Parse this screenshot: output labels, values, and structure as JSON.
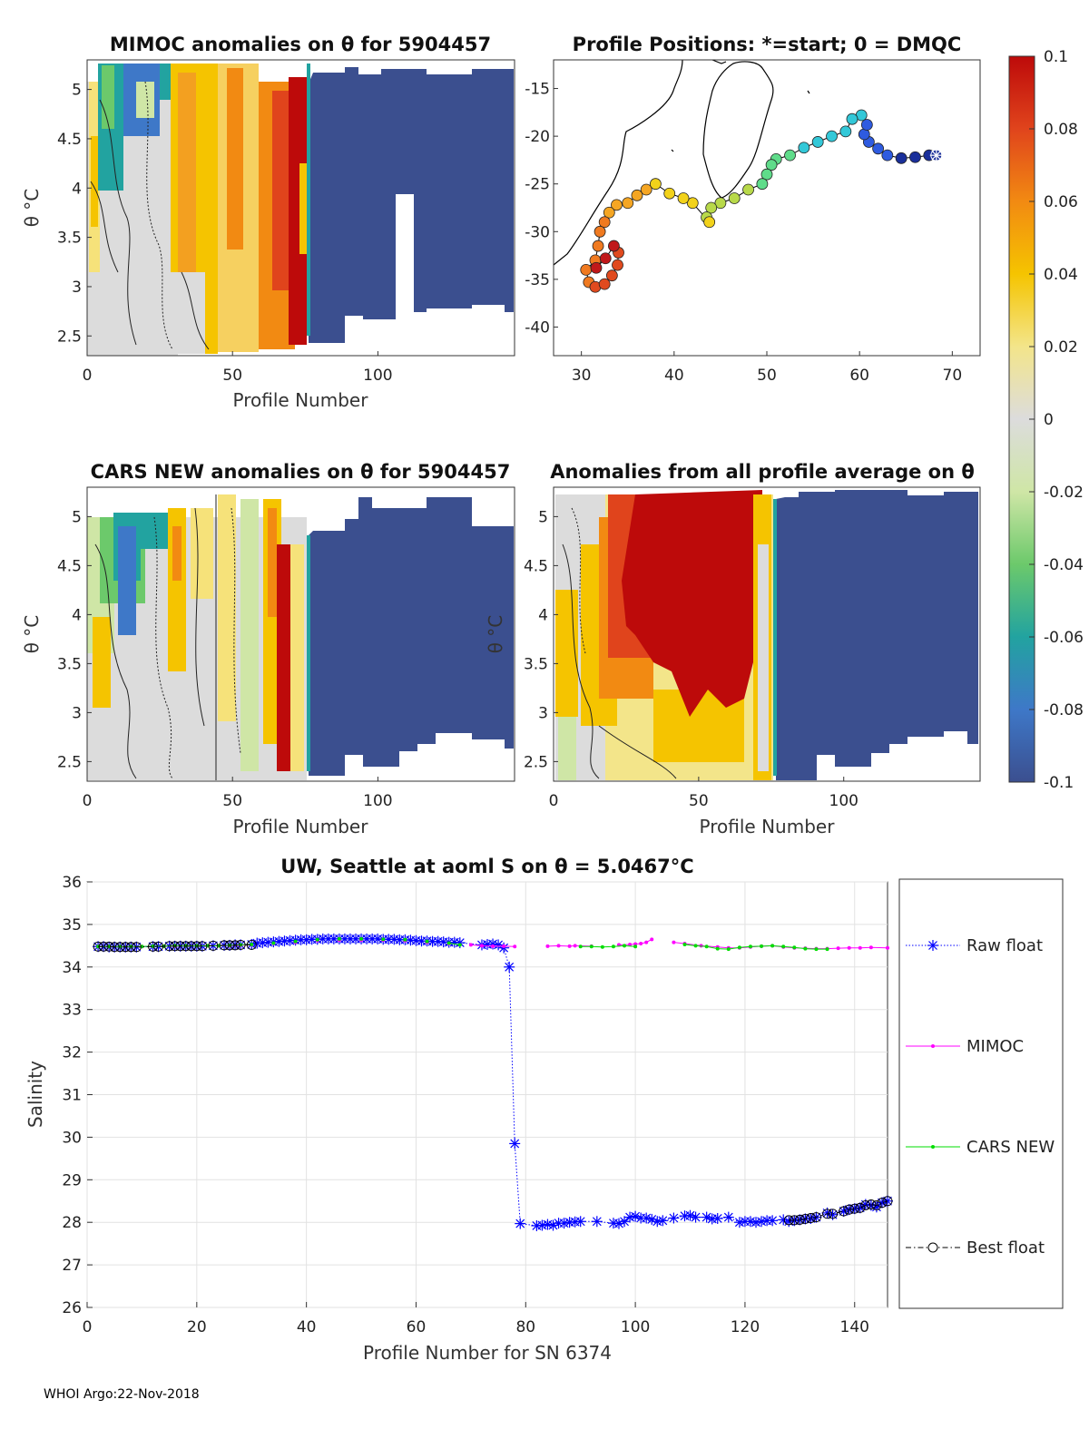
{
  "footer": "WHOI Argo:22-Nov-2018",
  "panels": {
    "mimoc": {
      "title": "MIMOC anomalies on θ  for 5904457",
      "xlabel": "Profile Number",
      "ylabel": "θ °C",
      "xticks": [
        0,
        50,
        100
      ],
      "yticks": [
        2.5,
        3,
        3.5,
        4,
        4.5,
        5
      ],
      "xlim": [
        0,
        147
      ],
      "ylim": [
        2.3,
        5.3
      ]
    },
    "map": {
      "title": "Profile Positions: *=start; 0 = DMQC",
      "xticks": [
        30,
        40,
        50,
        60,
        70
      ],
      "yticks": [
        -15,
        -20,
        -25,
        -30,
        -35,
        -40
      ],
      "xlim": [
        27,
        73
      ],
      "ylim": [
        -43,
        -12
      ]
    },
    "cars": {
      "title": "CARS NEW anomalies on θ for 5904457",
      "xlabel": "Profile Number",
      "ylabel": "θ °C",
      "xticks": [
        0,
        50,
        100
      ],
      "yticks": [
        2.5,
        3,
        3.5,
        4,
        4.5,
        5
      ],
      "xlim": [
        0,
        147
      ],
      "ylim": [
        2.3,
        5.3
      ]
    },
    "avg": {
      "title": "Anomalies from all profile average on θ",
      "xlabel": "Profile Number",
      "ylabel": "θ °C",
      "xticks": [
        0,
        50,
        100
      ],
      "yticks": [
        2.5,
        3,
        3.5,
        4,
        4.5,
        5
      ],
      "xlim": [
        0,
        147
      ],
      "ylim": [
        2.3,
        5.3
      ]
    }
  },
  "colorbar": {
    "ticks": [
      "0.1",
      "0.08",
      "0.06",
      "0.04",
      "0.02",
      "0",
      "-0.02",
      "-0.04",
      "-0.06",
      "-0.08",
      "-0.1"
    ]
  },
  "chart_data": {
    "type": "line",
    "title": "UW, Seattle at aoml S on θ = 5.0467°C",
    "xlabel": "Profile Number for SN 6374",
    "ylabel": "Salinity",
    "xlim": [
      0,
      146
    ],
    "ylim": [
      26,
      36
    ],
    "xticks": [
      0,
      20,
      40,
      60,
      80,
      100,
      120,
      140
    ],
    "yticks": [
      26,
      27,
      28,
      29,
      30,
      31,
      32,
      33,
      34,
      35,
      36
    ],
    "grid": true,
    "legend": [
      "Raw float",
      "MIMOC",
      "CARS NEW",
      "Best float"
    ],
    "series": [
      {
        "name": "Raw float",
        "color": "#0000ff",
        "points": [
          [
            2,
            34.48
          ],
          [
            3,
            34.48
          ],
          [
            4,
            34.47
          ],
          [
            5,
            34.47
          ],
          [
            6,
            34.47
          ],
          [
            7,
            34.47
          ],
          [
            8,
            34.47
          ],
          [
            9,
            34.47
          ],
          [
            12,
            34.48
          ],
          [
            13,
            34.48
          ],
          [
            15,
            34.49
          ],
          [
            16,
            34.49
          ],
          [
            17,
            34.49
          ],
          [
            18,
            34.49
          ],
          [
            19,
            34.49
          ],
          [
            20,
            34.49
          ],
          [
            21,
            34.49
          ],
          [
            23,
            34.5
          ],
          [
            25,
            34.51
          ],
          [
            26,
            34.51
          ],
          [
            27,
            34.52
          ],
          [
            28,
            34.52
          ],
          [
            30,
            34.53
          ],
          [
            31,
            34.56
          ],
          [
            32,
            34.57
          ],
          [
            33,
            34.58
          ],
          [
            34,
            34.59
          ],
          [
            35,
            34.6
          ],
          [
            36,
            34.61
          ],
          [
            37,
            34.62
          ],
          [
            38,
            34.63
          ],
          [
            39,
            34.64
          ],
          [
            40,
            34.64
          ],
          [
            41,
            34.65
          ],
          [
            42,
            34.65
          ],
          [
            43,
            34.66
          ],
          [
            44,
            34.66
          ],
          [
            45,
            34.66
          ],
          [
            46,
            34.66
          ],
          [
            47,
            34.66
          ],
          [
            48,
            34.66
          ],
          [
            49,
            34.66
          ],
          [
            50,
            34.66
          ],
          [
            51,
            34.66
          ],
          [
            52,
            34.66
          ],
          [
            53,
            34.66
          ],
          [
            54,
            34.65
          ],
          [
            55,
            34.65
          ],
          [
            56,
            34.65
          ],
          [
            57,
            34.64
          ],
          [
            58,
            34.64
          ],
          [
            59,
            34.63
          ],
          [
            60,
            34.62
          ],
          [
            61,
            34.61
          ],
          [
            62,
            34.61
          ],
          [
            63,
            34.6
          ],
          [
            64,
            34.6
          ],
          [
            65,
            34.59
          ],
          [
            66,
            34.58
          ],
          [
            67,
            34.58
          ],
          [
            68,
            34.57
          ],
          [
            72,
            34.52
          ],
          [
            73,
            34.53
          ],
          [
            74,
            34.54
          ],
          [
            75,
            34.52
          ],
          [
            76,
            34.45
          ],
          [
            77,
            34.0
          ],
          [
            78,
            29.85
          ],
          [
            79,
            27.97
          ],
          [
            82,
            27.92
          ],
          [
            83,
            27.93
          ],
          [
            84,
            27.95
          ],
          [
            85,
            27.93
          ],
          [
            86,
            27.98
          ],
          [
            87,
            27.98
          ],
          [
            88,
            28.0
          ],
          [
            89,
            28.01
          ],
          [
            90,
            28.02
          ],
          [
            93,
            28.02
          ],
          [
            96,
            27.98
          ],
          [
            97,
            27.97
          ],
          [
            98,
            28.02
          ],
          [
            99,
            28.12
          ],
          [
            100,
            28.14
          ],
          [
            101,
            28.1
          ],
          [
            102,
            28.1
          ],
          [
            103,
            28.07
          ],
          [
            104,
            28.02
          ],
          [
            105,
            28.04
          ],
          [
            107,
            28.1
          ],
          [
            109,
            28.15
          ],
          [
            110,
            28.16
          ],
          [
            111,
            28.12
          ],
          [
            113,
            28.12
          ],
          [
            114,
            28.08
          ],
          [
            115,
            28.09
          ],
          [
            117,
            28.12
          ],
          [
            119,
            28.0
          ],
          [
            120,
            28.02
          ],
          [
            121,
            28.02
          ],
          [
            122,
            28.0
          ],
          [
            123,
            28.02
          ],
          [
            124,
            28.04
          ],
          [
            125,
            28.04
          ],
          [
            127,
            28.06
          ],
          [
            128,
            28.02
          ],
          [
            129,
            28.04
          ],
          [
            130,
            28.06
          ],
          [
            131,
            28.08
          ],
          [
            132,
            28.09
          ],
          [
            133,
            28.12
          ],
          [
            135,
            28.22
          ],
          [
            136,
            28.18
          ],
          [
            138,
            28.26
          ],
          [
            139,
            28.3
          ],
          [
            140,
            28.32
          ],
          [
            141,
            28.34
          ],
          [
            142,
            28.42
          ],
          [
            143,
            28.4
          ],
          [
            144,
            28.36
          ],
          [
            145,
            28.46
          ],
          [
            146,
            28.5
          ]
        ]
      },
      {
        "name": "MIMOC",
        "color": "#ff00ff",
        "points": [
          [
            2,
            34.48
          ],
          [
            4,
            34.48
          ],
          [
            6,
            34.48
          ],
          [
            8,
            34.48
          ],
          [
            10,
            34.48
          ],
          [
            12,
            34.49
          ],
          [
            14,
            34.49
          ],
          [
            16,
            34.49
          ],
          [
            18,
            34.5
          ],
          [
            20,
            34.5
          ],
          [
            22,
            34.5
          ],
          [
            24,
            34.5
          ],
          [
            26,
            34.5
          ],
          [
            28,
            34.51
          ],
          [
            30,
            34.52
          ],
          [
            34,
            34.55
          ],
          [
            38,
            34.58
          ],
          [
            42,
            34.62
          ],
          [
            46,
            34.63
          ],
          [
            50,
            34.63
          ],
          [
            54,
            34.63
          ],
          [
            58,
            34.62
          ],
          [
            62,
            34.58
          ],
          [
            66,
            34.55
          ],
          [
            70,
            34.52
          ],
          [
            72,
            34.5
          ],
          [
            74,
            34.49
          ],
          [
            76,
            34.49
          ],
          [
            78,
            34.48
          ],
          [
            84,
            34.49
          ],
          [
            86,
            34.5
          ],
          [
            88,
            34.49
          ],
          [
            89,
            34.5
          ],
          [
            92,
            34.49
          ],
          [
            97,
            34.52
          ],
          [
            99,
            34.53
          ],
          [
            100,
            34.54
          ],
          [
            101,
            34.55
          ],
          [
            102,
            34.58
          ],
          [
            103,
            34.65
          ],
          [
            107,
            34.58
          ],
          [
            109,
            34.55
          ],
          [
            112,
            34.5
          ],
          [
            115,
            34.47
          ],
          [
            117,
            34.45
          ],
          [
            119,
            34.45
          ],
          [
            121,
            34.47
          ],
          [
            123,
            34.49
          ],
          [
            125,
            34.5
          ],
          [
            127,
            34.47
          ],
          [
            129,
            34.45
          ],
          [
            131,
            34.44
          ],
          [
            133,
            34.43
          ],
          [
            135,
            34.43
          ],
          [
            137,
            34.44
          ],
          [
            139,
            34.45
          ],
          [
            141,
            34.45
          ],
          [
            143,
            34.46
          ],
          [
            146,
            34.45
          ]
        ]
      },
      {
        "name": "CARS NEW",
        "color": "#00dd00",
        "points": [
          [
            2,
            34.48
          ],
          [
            4,
            34.48
          ],
          [
            6,
            34.48
          ],
          [
            8,
            34.48
          ],
          [
            10,
            34.48
          ],
          [
            12,
            34.49
          ],
          [
            14,
            34.49
          ],
          [
            16,
            34.5
          ],
          [
            18,
            34.5
          ],
          [
            20,
            34.5
          ],
          [
            22,
            34.5
          ],
          [
            24,
            34.5
          ],
          [
            26,
            34.51
          ],
          [
            28,
            34.52
          ],
          [
            30,
            34.53
          ],
          [
            34,
            34.56
          ],
          [
            38,
            34.6
          ],
          [
            42,
            34.64
          ],
          [
            46,
            34.66
          ],
          [
            50,
            34.66
          ],
          [
            54,
            34.65
          ],
          [
            58,
            34.64
          ],
          [
            62,
            34.6
          ],
          [
            66,
            34.56
          ],
          [
            68,
            34.52
          ],
          [
            90,
            34.48
          ],
          [
            92,
            34.48
          ],
          [
            94,
            34.47
          ],
          [
            96,
            34.48
          ],
          [
            98,
            34.5
          ],
          [
            100,
            34.48
          ],
          [
            109,
            34.53
          ],
          [
            111,
            34.5
          ],
          [
            113,
            34.48
          ],
          [
            115,
            34.43
          ],
          [
            117,
            34.42
          ],
          [
            119,
            34.46
          ],
          [
            121,
            34.48
          ],
          [
            123,
            34.49
          ],
          [
            125,
            34.5
          ],
          [
            127,
            34.48
          ],
          [
            129,
            34.46
          ],
          [
            131,
            34.43
          ],
          [
            133,
            34.42
          ],
          [
            135,
            34.42
          ]
        ]
      },
      {
        "name": "Best float",
        "color": "#000000",
        "points": [
          [
            2,
            34.48
          ],
          [
            3,
            34.48
          ],
          [
            4,
            34.48
          ],
          [
            5,
            34.47
          ],
          [
            6,
            34.47
          ],
          [
            7,
            34.47
          ],
          [
            8,
            34.47
          ],
          [
            9,
            34.47
          ],
          [
            12,
            34.48
          ],
          [
            13,
            34.48
          ],
          [
            15,
            34.49
          ],
          [
            16,
            34.49
          ],
          [
            17,
            34.49
          ],
          [
            18,
            34.49
          ],
          [
            19,
            34.49
          ],
          [
            20,
            34.49
          ],
          [
            21,
            34.49
          ],
          [
            23,
            34.5
          ],
          [
            25,
            34.51
          ],
          [
            26,
            34.51
          ],
          [
            27,
            34.51
          ],
          [
            28,
            34.52
          ],
          [
            30,
            34.52
          ],
          [
            128,
            28.05
          ],
          [
            129,
            28.05
          ],
          [
            130,
            28.06
          ],
          [
            131,
            28.08
          ],
          [
            132,
            28.1
          ],
          [
            133,
            28.12
          ],
          [
            135,
            28.2
          ],
          [
            136,
            28.2
          ],
          [
            138,
            28.26
          ],
          [
            139,
            28.3
          ],
          [
            140,
            28.32
          ],
          [
            141,
            28.34
          ],
          [
            142,
            28.4
          ],
          [
            143,
            28.42
          ],
          [
            144,
            28.4
          ],
          [
            145,
            28.46
          ],
          [
            146,
            28.5
          ]
        ]
      }
    ]
  }
}
